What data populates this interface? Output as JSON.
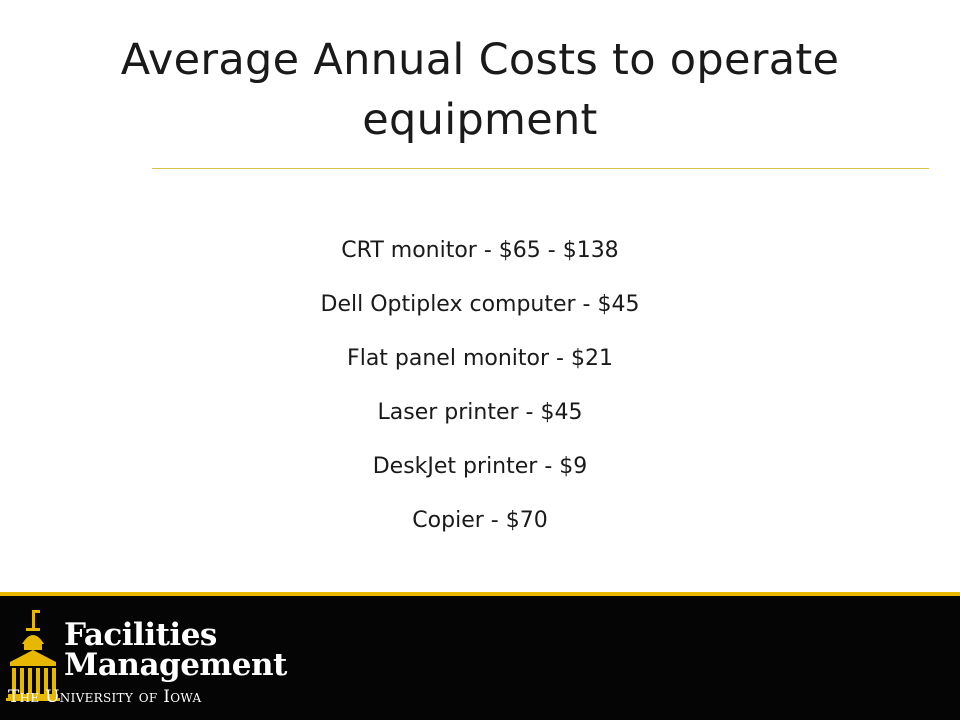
{
  "slide": {
    "title": "Average Annual Costs to operate equipment",
    "items": [
      "CRT monitor - $65 - $138",
      "Dell Optiplex computer - $45",
      "Flat panel monitor - $21",
      "Laser printer - $45",
      "DeskJet printer - $9",
      "Copier - $70"
    ]
  },
  "footer": {
    "logo_line1": "Facilities",
    "logo_line2": "Management",
    "logo_sub": "The University of Iowa",
    "logo_icon": "old-capitol-building-icon",
    "accent_color": "#e8b800",
    "background_color": "#050505"
  }
}
